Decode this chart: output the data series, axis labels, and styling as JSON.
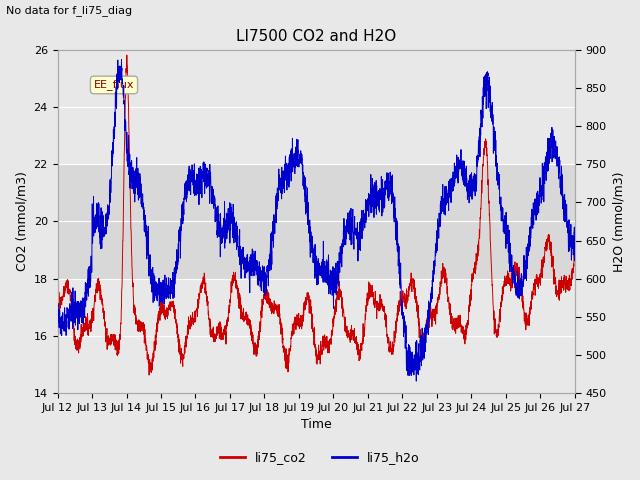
{
  "title": "LI7500 CO2 and H2O",
  "suptitle": "No data for f_li75_diag",
  "xlabel": "Time",
  "ylabel_left": "CO2 (mmol/m3)",
  "ylabel_right": "H2O (mmol/m3)",
  "ylim_left": [
    14,
    26
  ],
  "ylim_right": [
    450,
    900
  ],
  "yticks_left": [
    14,
    16,
    18,
    20,
    22,
    24,
    26
  ],
  "yticks_right": [
    450,
    500,
    550,
    600,
    650,
    700,
    750,
    800,
    850,
    900
  ],
  "xticklabels": [
    "Jul 12",
    "Jul 13",
    "Jul 14",
    "Jul 15",
    "Jul 16",
    "Jul 17",
    "Jul 18",
    "Jul 19",
    "Jul 20",
    "Jul 21",
    "Jul 22",
    "Jul 23",
    "Jul 24",
    "Jul 25",
    "Jul 26",
    "Jul 27"
  ],
  "legend_labels": [
    "li75_co2",
    "li75_h2o"
  ],
  "legend_colors": [
    "#cc0000",
    "#0000cc"
  ],
  "annotation_text": "EE_flux",
  "shading_color": "#d8d8d8",
  "shading_ylim": [
    18,
    22
  ],
  "co2_color": "#cc0000",
  "h2o_color": "#0000cc",
  "background_color": "#e8e8e8",
  "grid_color": "#ffffff",
  "title_fontsize": 11,
  "axis_fontsize": 9,
  "tick_fontsize": 8
}
